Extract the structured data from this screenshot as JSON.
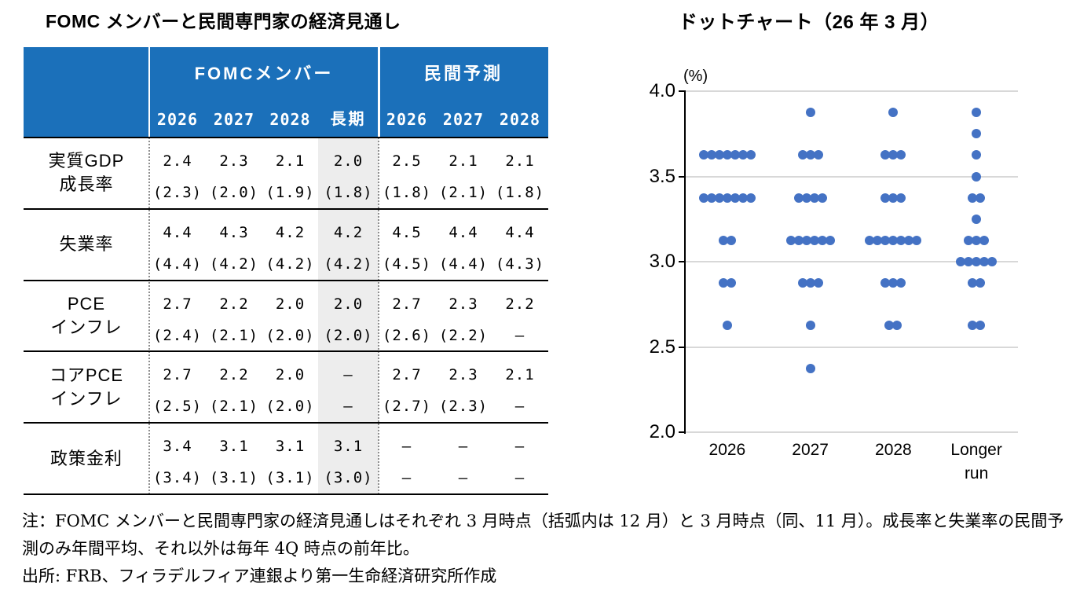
{
  "table": {
    "title": "FOMC メンバーと民間専門家の経済見通し",
    "groups": [
      {
        "label": "FOMCメンバー",
        "years": [
          "2026",
          "2027",
          "2028",
          "長期"
        ]
      },
      {
        "label": "民間予測",
        "years": [
          "2026",
          "2027",
          "2028"
        ]
      }
    ],
    "rows": [
      {
        "label": "実質GDP\n成長率",
        "fomc": [
          "2.4",
          "2.3",
          "2.1",
          "2.0"
        ],
        "fomc_prev": [
          "(2.3)",
          "(2.0)",
          "(1.9)",
          "(1.8)"
        ],
        "private": [
          "2.5",
          "2.1",
          "2.1"
        ],
        "private_prev": [
          "(1.8)",
          "(2.1)",
          "(1.8)"
        ]
      },
      {
        "label": "失業率",
        "fomc": [
          "4.4",
          "4.3",
          "4.2",
          "4.2"
        ],
        "fomc_prev": [
          "(4.4)",
          "(4.2)",
          "(4.2)",
          "(4.2)"
        ],
        "private": [
          "4.5",
          "4.4",
          "4.4"
        ],
        "private_prev": [
          "(4.5)",
          "(4.4)",
          "(4.3)"
        ]
      },
      {
        "label": "PCE\nインフレ",
        "fomc": [
          "2.7",
          "2.2",
          "2.0",
          "2.0"
        ],
        "fomc_prev": [
          "(2.4)",
          "(2.1)",
          "(2.0)",
          "(2.0)"
        ],
        "private": [
          "2.7",
          "2.3",
          "2.2"
        ],
        "private_prev": [
          "(2.6)",
          "(2.2)",
          "–"
        ]
      },
      {
        "label": "コアPCE\nインフレ",
        "fomc": [
          "2.7",
          "2.2",
          "2.0",
          "–"
        ],
        "fomc_prev": [
          "(2.5)",
          "(2.1)",
          "(2.0)",
          "–"
        ],
        "private": [
          "2.7",
          "2.3",
          "2.1"
        ],
        "private_prev": [
          "(2.7)",
          "(2.3)",
          "–"
        ]
      },
      {
        "label": "政策金利",
        "fomc": [
          "3.4",
          "3.1",
          "3.1",
          "3.1"
        ],
        "fomc_prev": [
          "(3.4)",
          "(3.1)",
          "(3.1)",
          "(3.0)"
        ],
        "private": [
          "–",
          "–",
          "–"
        ],
        "private_prev": [
          "–",
          "–",
          "–"
        ]
      }
    ],
    "header_color": "#1B70BA",
    "longrun_shade_color": "#EDEDED"
  },
  "chart_data": {
    "type": "scatter",
    "title": "ドットチャート（26 年 3 月）",
    "unit_label": "(%)",
    "categories": [
      "2026",
      "2027",
      "2028",
      "Longer\nrun"
    ],
    "ylim": [
      2.0,
      4.0
    ],
    "yticks": [
      4.0,
      3.5,
      3.0,
      2.5,
      2.0
    ],
    "grid": true,
    "legend": "none",
    "dot_color": "#4472C4",
    "series": [
      {
        "name": "2026",
        "dots": [
          [
            3.625,
            7
          ],
          [
            3.375,
            7
          ],
          [
            3.125,
            2
          ],
          [
            2.875,
            2
          ],
          [
            2.625,
            1
          ]
        ]
      },
      {
        "name": "2027",
        "dots": [
          [
            3.875,
            1
          ],
          [
            3.625,
            3
          ],
          [
            3.375,
            4
          ],
          [
            3.125,
            6
          ],
          [
            2.875,
            3
          ],
          [
            2.625,
            1
          ],
          [
            2.375,
            1
          ]
        ]
      },
      {
        "name": "2028",
        "dots": [
          [
            3.875,
            1
          ],
          [
            3.625,
            3
          ],
          [
            3.375,
            3
          ],
          [
            3.125,
            7
          ],
          [
            2.875,
            3
          ],
          [
            2.625,
            2
          ]
        ]
      },
      {
        "name": "Longer run",
        "dots": [
          [
            3.875,
            1
          ],
          [
            3.75,
            1
          ],
          [
            3.625,
            1
          ],
          [
            3.5,
            1
          ],
          [
            3.375,
            2
          ],
          [
            3.25,
            1
          ],
          [
            3.125,
            3
          ],
          [
            3.0,
            5
          ],
          [
            2.875,
            2
          ],
          [
            2.625,
            2
          ]
        ]
      }
    ]
  },
  "notes": {
    "note": "注：FOMC メンバーと民間専門家の経済見通しはそれぞれ 3 月時点（括弧内は 12 月）と 3 月時点（同、11 月）。成長率と失業率の民間予測のみ年間平均、それ以外は毎年 4Q 時点の前年比。",
    "source": "出所: FRB、フィラデルフィア連銀より第一生命経済研究所作成"
  }
}
